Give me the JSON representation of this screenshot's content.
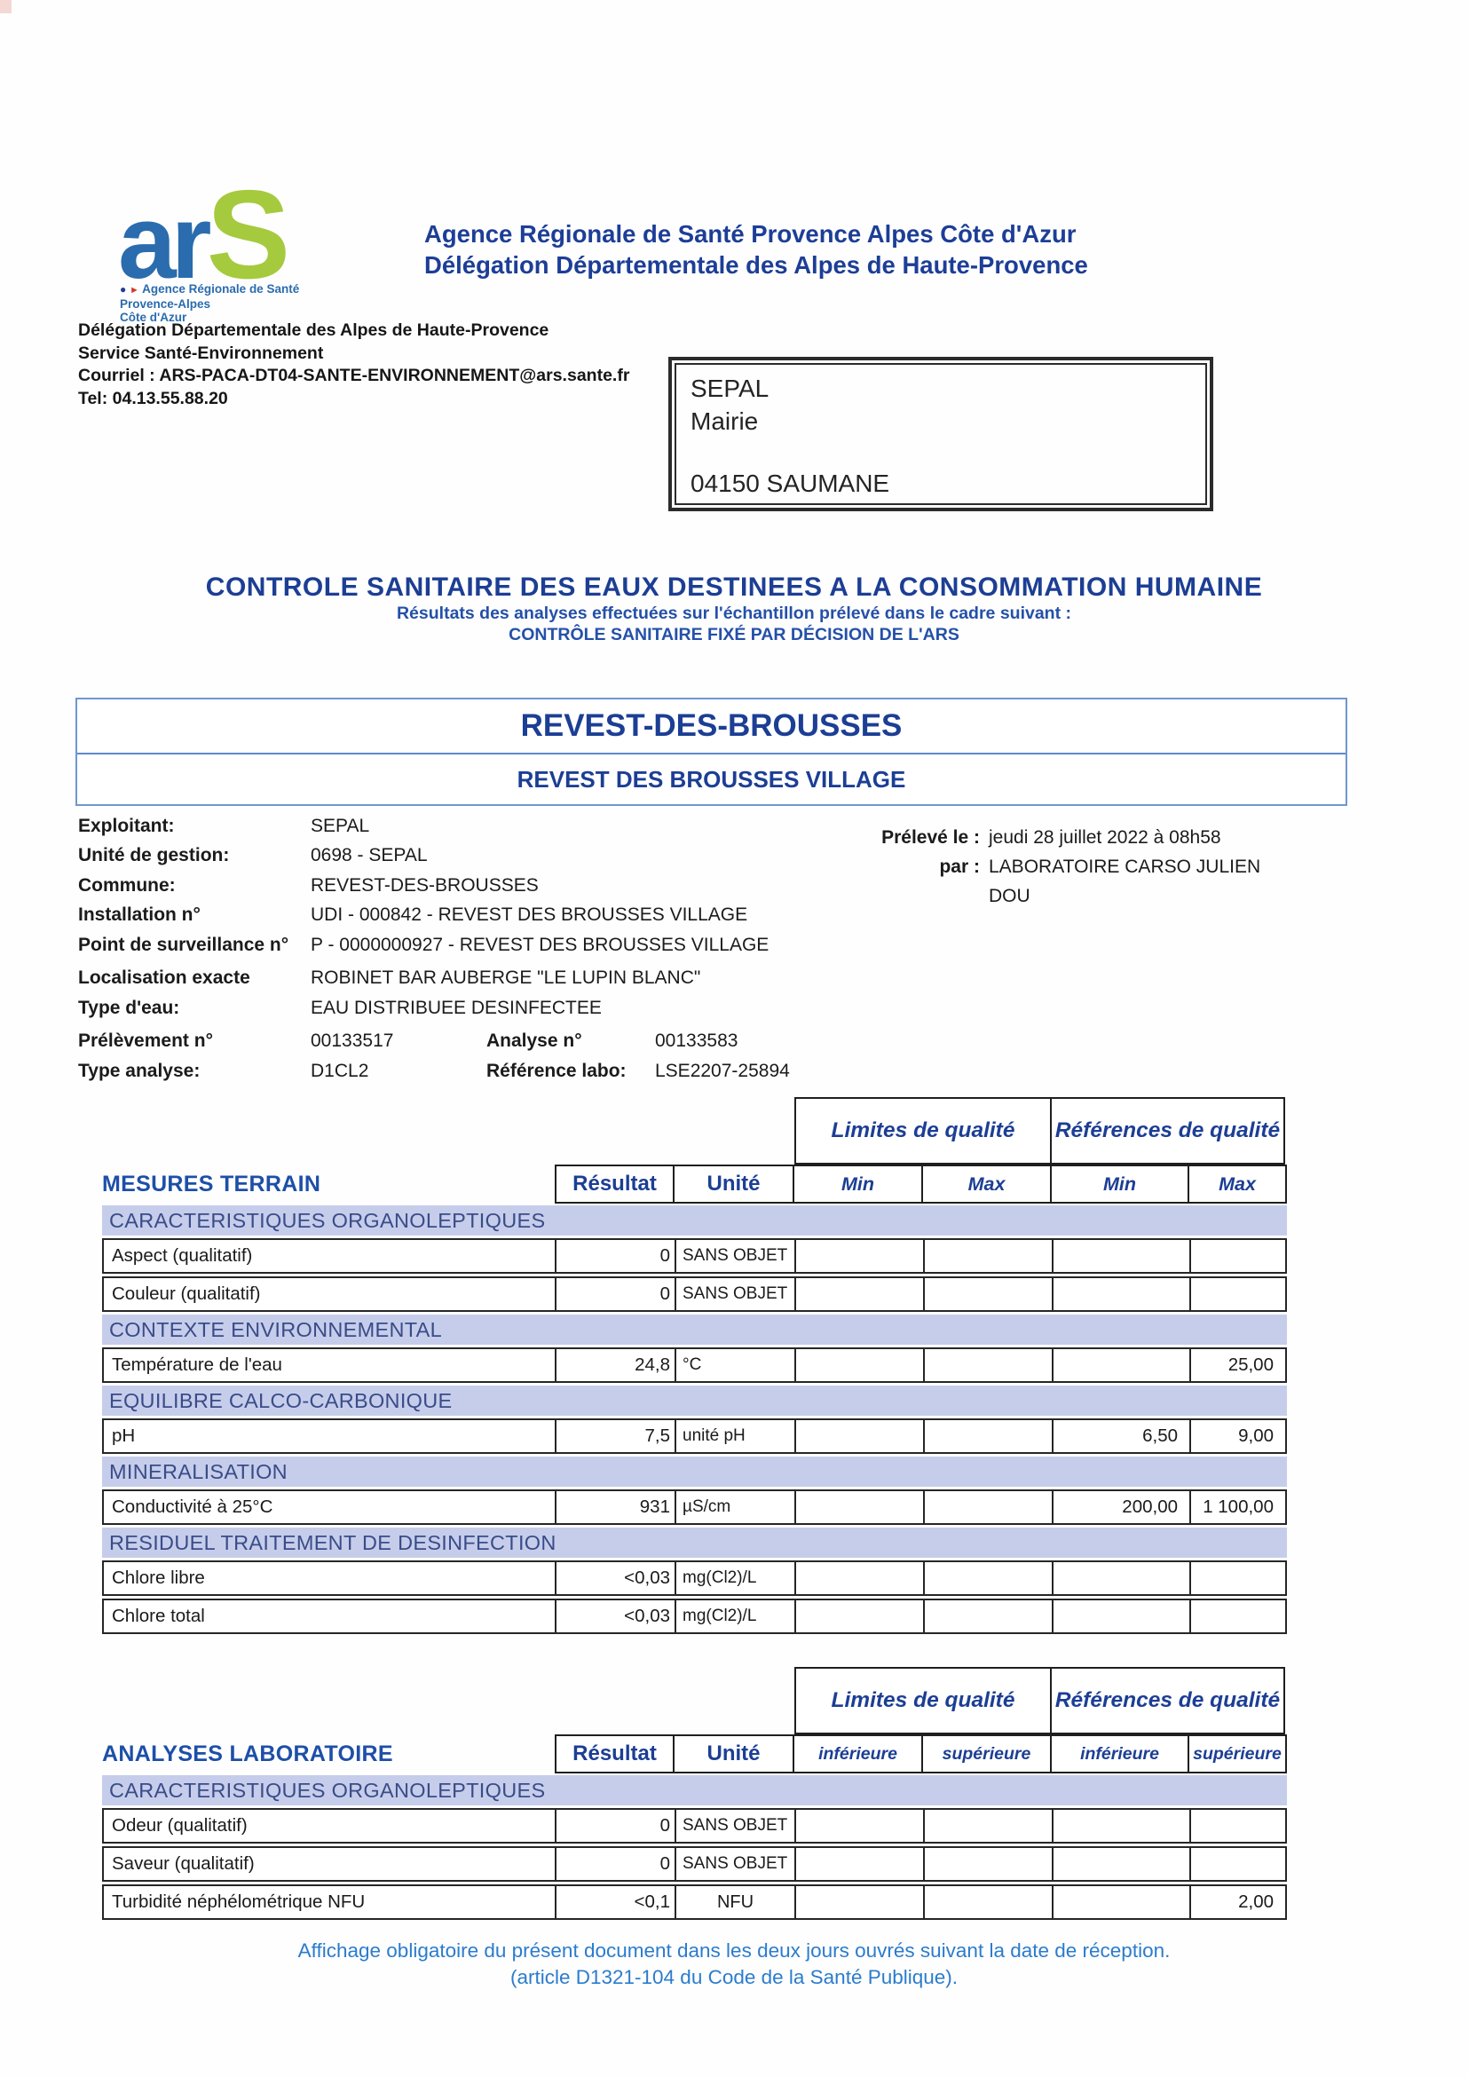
{
  "logo": {
    "ar": "ar",
    "s": "S",
    "tagline": "Agence Régionale de Santé",
    "region_line1": "Provence-Alpes",
    "region_line2": "Côte d'Azur"
  },
  "header": {
    "line1": "Agence Régionale de Santé Provence Alpes Côte d'Azur",
    "line2": "Délégation Départementale des Alpes de Haute-Provence"
  },
  "sender": {
    "line1": "Délégation Départementale des Alpes de Haute-Provence",
    "line2": "Service Santé-Environnement",
    "line3": "Courriel :  ARS-PACA-DT04-SANTE-ENVIRONNEMENT@ars.sante.fr",
    "line4": "Tel: 04.13.55.88.20"
  },
  "recipient": {
    "line1": "SEPAL",
    "line2": "Mairie",
    "line3": "04150 SAUMANE"
  },
  "title": {
    "main": "CONTROLE SANITAIRE DES EAUX DESTINEES A LA CONSOMMATION HUMAINE",
    "sub1": "Résultats des analyses effectuées sur l'échantillon  prélevé dans le cadre suivant :",
    "sub2": "CONTRÔLE SANITAIRE FIXÉ PAR DÉCISION DE L'ARS"
  },
  "location": {
    "name": "REVEST-DES-BROUSSES",
    "site": "REVEST DES BROUSSES VILLAGE"
  },
  "info": {
    "exploitant_label": "Exploitant:",
    "exploitant": "SEPAL",
    "unite_label": "Unité de gestion:",
    "unite": "0698 - SEPAL",
    "commune_label": "Commune:",
    "commune": "REVEST-DES-BROUSSES",
    "installation_label": "Installation n°",
    "installation": "UDI - 000842 - REVEST DES BROUSSES VILLAGE",
    "point_label": "Point de surveillance n°",
    "point": "P - 0000000927 - REVEST DES BROUSSES VILLAGE",
    "localisation_label": "Localisation exacte",
    "localisation": "ROBINET BAR AUBERGE \"LE LUPIN BLANC\"",
    "type_eau_label": "Type d'eau:",
    "type_eau": "EAU DISTRIBUEE DESINFECTEE",
    "prelevement_label": "Prélèvement n°",
    "prelevement": "00133517",
    "analyse_label": "Analyse n°",
    "analyse": "00133583",
    "type_analyse_label": "Type analyse:",
    "type_analyse": "D1CL2",
    "ref_labo_label": "Référence labo:",
    "ref_labo": "LSE2207-25894",
    "preleve_le_label": "Prélevé le :",
    "preleve_le": "jeudi 28 juillet 2022 à 08h58",
    "par_label": "par :",
    "par": "LABORATOIRE CARSO JULIEN DOU"
  },
  "table_headers": {
    "limites": "Limites de qualité",
    "references": "Références de qualité",
    "resultat": "Résultat",
    "unite": "Unité",
    "min": "Min",
    "max": "Max",
    "inferieure": "inférieure",
    "superieure": "supérieure"
  },
  "field_table": {
    "title": "MESURES TERRAIN",
    "sections": [
      {
        "title": "CARACTERISTIQUES ORGANOLEPTIQUES",
        "rows": [
          {
            "label": "Aspect (qualitatif)",
            "result": "0",
            "unit": "SANS OBJET",
            "lmin": "",
            "lmax": "",
            "rmin": "",
            "rmax": ""
          },
          {
            "label": "Couleur (qualitatif)",
            "result": "0",
            "unit": "SANS OBJET",
            "lmin": "",
            "lmax": "",
            "rmin": "",
            "rmax": ""
          }
        ]
      },
      {
        "title": "CONTEXTE ENVIRONNEMENTAL",
        "rows": [
          {
            "label": "Température de l'eau",
            "result": "24,8",
            "unit": "°C",
            "lmin": "",
            "lmax": "",
            "rmin": "",
            "rmax": "25,00"
          }
        ]
      },
      {
        "title": "EQUILIBRE CALCO-CARBONIQUE",
        "rows": [
          {
            "label": "pH",
            "result": "7,5",
            "unit": "unité pH",
            "lmin": "",
            "lmax": "",
            "rmin": "6,50",
            "rmax": "9,00"
          }
        ]
      },
      {
        "title": "MINERALISATION",
        "rows": [
          {
            "label": "Conductivité à 25°C",
            "result": "931",
            "unit": "µS/cm",
            "lmin": "",
            "lmax": "",
            "rmin": "200,00",
            "rmax": "1 100,00"
          }
        ]
      },
      {
        "title": "RESIDUEL TRAITEMENT DE DESINFECTION",
        "rows": [
          {
            "label": "Chlore libre",
            "result": "<0,03",
            "unit": "mg(Cl2)/L",
            "lmin": "",
            "lmax": "",
            "rmin": "",
            "rmax": ""
          },
          {
            "label": "Chlore total",
            "result": "<0,03",
            "unit": "mg(Cl2)/L",
            "lmin": "",
            "lmax": "",
            "rmin": "",
            "rmax": ""
          }
        ]
      }
    ]
  },
  "lab_table": {
    "title": "ANALYSES LABORATOIRE",
    "sections": [
      {
        "title": "CARACTERISTIQUES ORGANOLEPTIQUES",
        "rows": [
          {
            "label": "Odeur (qualitatif)",
            "result": "0",
            "unit": "SANS OBJET",
            "lmin": "",
            "lmax": "",
            "rmin": "",
            "rmax": ""
          },
          {
            "label": "Saveur (qualitatif)",
            "result": "0",
            "unit": "SANS OBJET",
            "lmin": "",
            "lmax": "",
            "rmin": "",
            "rmax": ""
          },
          {
            "label": "Turbidité néphélométrique NFU",
            "result": "<0,1",
            "unit": "NFU",
            "lmin": "",
            "lmax": "",
            "rmin": "",
            "rmax": "2,00"
          }
        ]
      }
    ]
  },
  "footer": {
    "line1": "Affichage obligatoire du présent document dans les deux jours ouvrés suivant la date de réception.",
    "line2": "(article D1321-104 du Code de la Santé Publique)."
  }
}
